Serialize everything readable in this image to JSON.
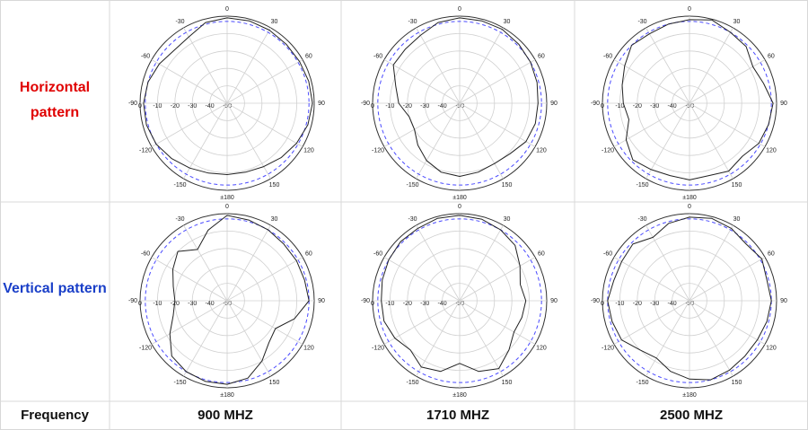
{
  "table": {
    "row_labels": [
      "Horizontal pattern",
      "Vertical pattern"
    ],
    "footer": [
      "Frequency",
      "900 MHZ",
      "1710 MHZ",
      "2500 MHZ"
    ]
  },
  "chart_data": [
    {
      "type": "polar",
      "theta": [
        0,
        15,
        30,
        45,
        60,
        75,
        90,
        105,
        120,
        135,
        150,
        165,
        180,
        195,
        210,
        225,
        240,
        255,
        270,
        285,
        300,
        315,
        330,
        345
      ],
      "values": [
        -1,
        -1,
        -1.5,
        -2,
        -2,
        -1.5,
        -1,
        -2,
        -4,
        -6,
        -8,
        -9,
        -9,
        -8.5,
        -7,
        -5,
        -3,
        -2,
        -2,
        -3,
        -5,
        -7,
        -6,
        -2
      ],
      "color": "#222222",
      "reference": -3,
      "reference_color": "#4a4aff",
      "rlim": [
        -50,
        0
      ],
      "rticks": [
        0,
        -10,
        -20,
        -30,
        -40,
        -50
      ],
      "angle_ticks": [
        0,
        30,
        60,
        90,
        120,
        150,
        {
          "value": 180,
          "label": "±180"
        },
        -150,
        -120,
        -90,
        -60,
        -30
      ]
    },
    {
      "type": "polar",
      "theta": [
        0,
        15,
        30,
        45,
        60,
        75,
        90,
        105,
        120,
        135,
        150,
        165,
        180,
        195,
        210,
        225,
        240,
        255,
        270,
        285,
        300,
        315,
        330,
        345
      ],
      "values": [
        -1,
        -1,
        -1,
        -2,
        -3,
        -4,
        -5,
        -5,
        -6,
        -9,
        -10,
        -9,
        -8,
        -9,
        -12,
        -16,
        -20,
        -20,
        -15,
        -12,
        -6,
        -6,
        -5,
        -2
      ],
      "color": "#222222",
      "reference": -3,
      "reference_color": "#4a4aff",
      "rlim": [
        -50,
        0
      ],
      "rticks": [
        0,
        -10,
        -20,
        -30,
        -40,
        -50
      ],
      "angle_ticks": [
        0,
        30,
        60,
        90,
        120,
        150,
        {
          "value": 180,
          "label": "±180"
        },
        -150,
        -120,
        -90,
        -60,
        -30
      ]
    },
    {
      "type": "polar",
      "theta": [
        0,
        15,
        30,
        45,
        60,
        75,
        90,
        105,
        120,
        135,
        150,
        165,
        180,
        195,
        210,
        225,
        240,
        255,
        270,
        285,
        300,
        315,
        330,
        345
      ],
      "values": [
        -2,
        -0.5,
        -3,
        -4,
        -8,
        -6,
        -2,
        -3,
        -4,
        -7,
        -5,
        -7,
        -6,
        -7,
        -6,
        -4,
        -8,
        -14,
        -12,
        -10,
        -7,
        -3,
        -4,
        -3
      ],
      "color": "#222222",
      "reference": -3,
      "reference_color": "#4a4aff",
      "rlim": [
        -50,
        0
      ],
      "rticks": [
        0,
        -10,
        -20,
        -30,
        -40,
        -50
      ],
      "angle_ticks": [
        0,
        30,
        60,
        90,
        120,
        150,
        {
          "value": 180,
          "label": "±180"
        },
        -150,
        -120,
        -90,
        -60,
        -30
      ]
    },
    {
      "type": "polar",
      "theta": [
        0,
        15,
        30,
        45,
        60,
        75,
        90,
        105,
        120,
        135,
        150,
        165,
        180,
        195,
        210,
        225,
        240,
        255,
        270,
        285,
        300,
        315,
        330,
        345
      ],
      "values": [
        -1,
        -2,
        -3,
        -4,
        -4,
        -4,
        -3,
        -10,
        -18,
        -16,
        -10,
        -4,
        -2,
        -2,
        -3,
        -5,
        -12,
        -18,
        -20,
        -18,
        -14,
        -10,
        -16,
        -8
      ],
      "color": "#222222",
      "reference": -3,
      "reference_color": "#4a4aff",
      "rlim": [
        -50,
        0
      ],
      "rticks": [
        0,
        -10,
        -20,
        -30,
        -40,
        -50
      ],
      "angle_ticks": [
        0,
        30,
        60,
        90,
        120,
        150,
        {
          "value": 180,
          "label": "±180"
        },
        -150,
        -120,
        -90,
        -60,
        -30
      ]
    },
    {
      "type": "polar",
      "theta": [
        0,
        15,
        30,
        45,
        60,
        75,
        90,
        105,
        120,
        135,
        150,
        165,
        180,
        195,
        210,
        225,
        240,
        255,
        270,
        285,
        300,
        315,
        330,
        345
      ],
      "values": [
        -1,
        -1.5,
        -3,
        -5,
        -10,
        -14,
        -12,
        -13,
        -14,
        -10,
        -5,
        -8,
        -14,
        -8,
        -6,
        -10,
        -7,
        -5,
        -5,
        -4,
        -3,
        -2,
        -2,
        -1
      ],
      "color": "#222222",
      "reference": -3,
      "reference_color": "#4a4aff",
      "rlim": [
        -50,
        0
      ],
      "rticks": [
        0,
        -10,
        -20,
        -30,
        -40,
        -50
      ],
      "angle_ticks": [
        0,
        30,
        60,
        90,
        120,
        150,
        {
          "value": 180,
          "label": "±180"
        },
        -150,
        -120,
        -90,
        -60,
        -30
      ]
    },
    {
      "type": "polar",
      "theta": [
        0,
        15,
        30,
        45,
        60,
        75,
        90,
        105,
        120,
        135,
        150,
        165,
        180,
        195,
        210,
        225,
        240,
        255,
        270,
        285,
        300,
        315,
        330,
        345
      ],
      "values": [
        -2,
        -1,
        -2,
        -4,
        -2,
        -4,
        -3,
        -4,
        -5,
        -5,
        -4,
        -3,
        -5,
        -8,
        -12,
        -10,
        -5,
        -4,
        -3,
        -5,
        -5,
        -4,
        -8,
        -4
      ],
      "color": "#222222",
      "reference": -3,
      "reference_color": "#4a4aff",
      "rlim": [
        -50,
        0
      ],
      "rticks": [
        0,
        -10,
        -20,
        -30,
        -40,
        -50
      ],
      "angle_ticks": [
        0,
        30,
        60,
        90,
        120,
        150,
        {
          "value": 180,
          "label": "±180"
        },
        -150,
        -120,
        -90,
        -60,
        -30
      ]
    }
  ]
}
